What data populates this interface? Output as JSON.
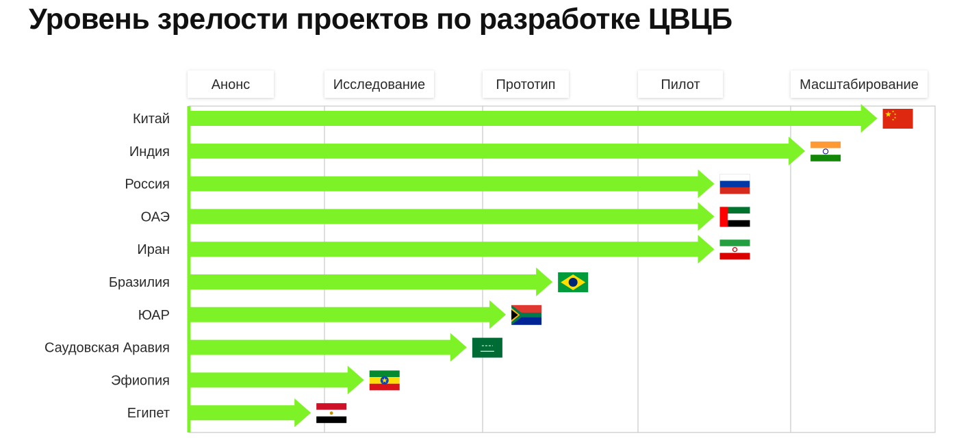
{
  "title": "Уровень зрелости проектов по разработке ЦВЦБ",
  "chart_data": {
    "type": "bar",
    "orientation": "horizontal",
    "stages": [
      "Анонс",
      "Исследование",
      "Прототип",
      "Пилот",
      "Масштабирование"
    ],
    "categories": [
      "Китай",
      "Индия",
      "Россия",
      "ОАЭ",
      "Иран",
      "Бразилия",
      "ЮАР",
      "Саудовская Аравия",
      "Эфиопия",
      "Египет"
    ],
    "values": [
      4.6,
      4.1,
      3.5,
      3.5,
      3.5,
      2.45,
      2.15,
      1.9,
      1.25,
      0.9
    ],
    "xlim": [
      0,
      5
    ],
    "grid": true,
    "bar_color": "#7df226",
    "flags": [
      "china-flag-icon",
      "india-flag-icon",
      "russia-flag-icon",
      "uae-flag-icon",
      "iran-flag-icon",
      "brazil-flag-icon",
      "south-africa-flag-icon",
      "saudi-arabia-flag-icon",
      "ethiopia-flag-icon",
      "egypt-flag-icon"
    ]
  }
}
